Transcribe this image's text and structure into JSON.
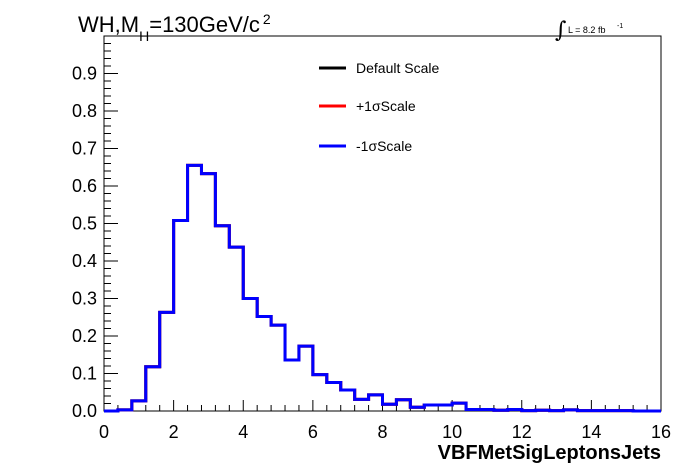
{
  "chart_data": {
    "type": "line",
    "title": {
      "main": "WH,M",
      "subscript": "H",
      "rest": "=130GeV/c",
      "superscript": "2"
    },
    "luminosity": {
      "label": "L = 8.2 fb",
      "superscript": "-1"
    },
    "xlabel": "VBFMetSigLeptonsJets",
    "ylabel": "",
    "xlim": [
      0,
      16
    ],
    "ylim": [
      0,
      1.0
    ],
    "x_ticks": [
      "0",
      "2",
      "4",
      "6",
      "8",
      "10",
      "12",
      "14",
      "16"
    ],
    "y_ticks": [
      "0.0",
      "0.1",
      "0.2",
      "0.3",
      "0.4",
      "0.5",
      "0.6",
      "0.7",
      "0.8",
      "0.9"
    ],
    "bin_width": 0.4,
    "bin_edges_start": 0,
    "series": [
      {
        "name": "Default Scale",
        "color": "#000000",
        "values": [
          0,
          0.003,
          0.027,
          0.118,
          0.263,
          0.508,
          0.655,
          0.633,
          0.494,
          0.437,
          0.3,
          0.252,
          0.229,
          0.136,
          0.173,
          0.097,
          0.076,
          0.056,
          0.031,
          0.043,
          0.018,
          0.03,
          0.01,
          0.016,
          0.016,
          0.021,
          0.004,
          0.004,
          0.002,
          0.004,
          0.001,
          0.002,
          0.001,
          0.003,
          0.001,
          0.001,
          0.001,
          0.001,
          0.0,
          0.0
        ]
      },
      {
        "name": "+1σScale",
        "color": "#ff0000",
        "values": [
          0,
          0.003,
          0.027,
          0.118,
          0.263,
          0.508,
          0.655,
          0.633,
          0.494,
          0.437,
          0.3,
          0.252,
          0.229,
          0.136,
          0.173,
          0.097,
          0.076,
          0.056,
          0.031,
          0.043,
          0.018,
          0.03,
          0.01,
          0.016,
          0.016,
          0.021,
          0.004,
          0.004,
          0.002,
          0.004,
          0.001,
          0.002,
          0.001,
          0.003,
          0.001,
          0.001,
          0.001,
          0.001,
          0.0,
          0.0
        ]
      },
      {
        "name": "-1σScale",
        "color": "#0000ff",
        "values": [
          0,
          0.003,
          0.027,
          0.118,
          0.263,
          0.508,
          0.655,
          0.633,
          0.494,
          0.437,
          0.3,
          0.252,
          0.229,
          0.136,
          0.173,
          0.097,
          0.076,
          0.056,
          0.031,
          0.043,
          0.018,
          0.03,
          0.01,
          0.016,
          0.016,
          0.021,
          0.004,
          0.004,
          0.002,
          0.004,
          0.001,
          0.002,
          0.001,
          0.003,
          0.001,
          0.001,
          0.001,
          0.001,
          0.0,
          0.0
        ]
      }
    ],
    "legend_placement": "top-right",
    "grid": false
  }
}
